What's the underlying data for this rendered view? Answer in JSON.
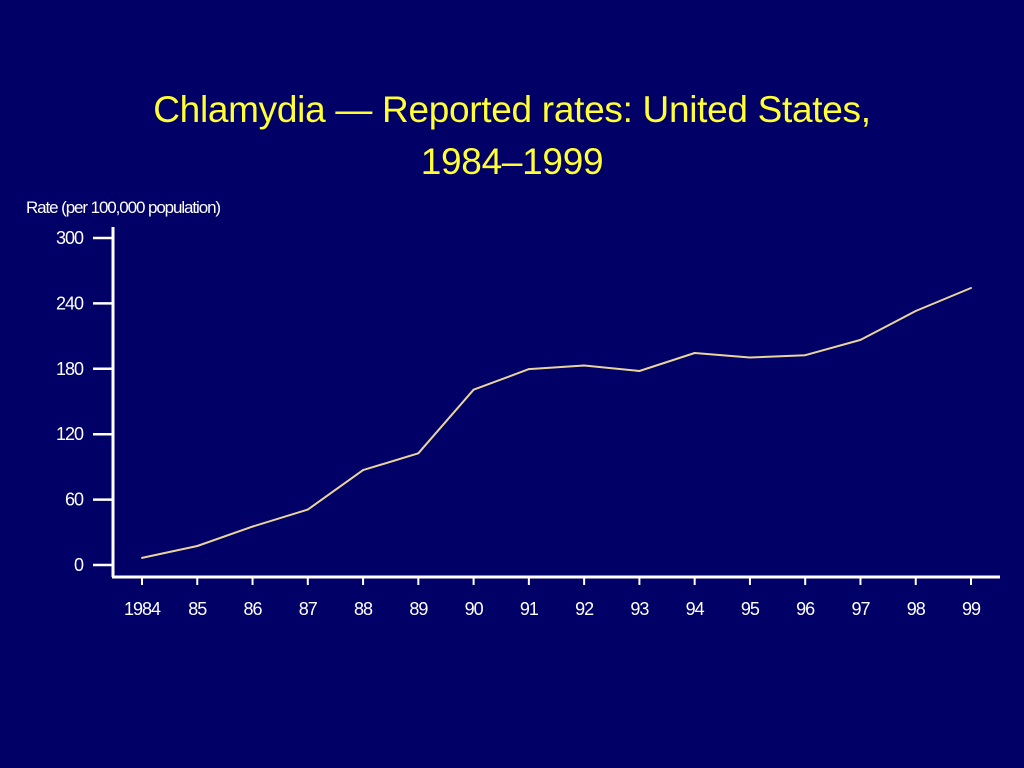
{
  "chart_data": {
    "type": "line",
    "title_line1": "Chlamydia  —  Reported rates: United States,",
    "title_line2": "1984–1999",
    "xlabel": "",
    "ylabel": "Rate (per 100,000 population)",
    "x_tick_labels": [
      "1984",
      "85",
      "86",
      "87",
      "88",
      "89",
      "90",
      "91",
      "92",
      "93",
      "94",
      "95",
      "96",
      "97",
      "98",
      "99"
    ],
    "y_ticks": [
      0,
      60,
      120,
      180,
      240,
      300
    ],
    "ylim": [
      0,
      300
    ],
    "grid": false,
    "legend": "none",
    "series": [
      {
        "x": [
          1984,
          1985,
          1986,
          1987,
          1988,
          1989,
          1990,
          1991,
          1992,
          1993,
          1994,
          1995,
          1996,
          1997,
          1998,
          1999
        ],
        "values": [
          6.5,
          17.4,
          35.2,
          50.8,
          87.1,
          102.5,
          160.8,
          179.7,
          183.0,
          178.0,
          194.5,
          190.4,
          192.5,
          206.5,
          233.0,
          254.1
        ],
        "color": "#e8d49c"
      }
    ],
    "colors": {
      "background": "#000066",
      "title": "#ffff33",
      "axes": "#ffffff"
    }
  }
}
